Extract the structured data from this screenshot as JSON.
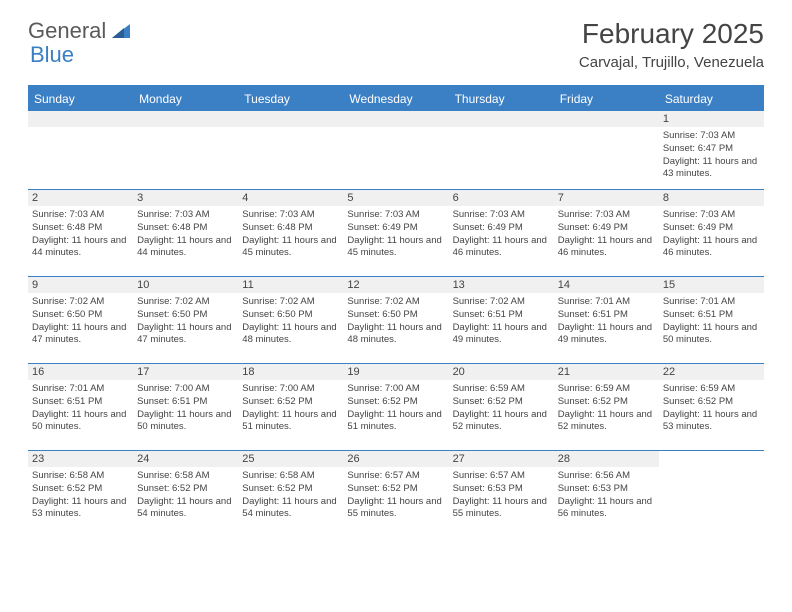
{
  "brand": {
    "part1": "General",
    "part2": "Blue"
  },
  "title": "February 2025",
  "location": "Carvajal, Trujillo, Venezuela",
  "colors": {
    "accent": "#3b7fc4",
    "header_bg": "#3b7fc4",
    "header_text": "#ffffff",
    "daynum_bg": "#f0f0f0",
    "text": "#444444"
  },
  "day_names": [
    "Sunday",
    "Monday",
    "Tuesday",
    "Wednesday",
    "Thursday",
    "Friday",
    "Saturday"
  ],
  "weeks": [
    [
      null,
      null,
      null,
      null,
      null,
      null,
      {
        "n": "1",
        "sr": "7:03 AM",
        "ss": "6:47 PM",
        "dl": "11 hours and 43 minutes."
      }
    ],
    [
      {
        "n": "2",
        "sr": "7:03 AM",
        "ss": "6:48 PM",
        "dl": "11 hours and 44 minutes."
      },
      {
        "n": "3",
        "sr": "7:03 AM",
        "ss": "6:48 PM",
        "dl": "11 hours and 44 minutes."
      },
      {
        "n": "4",
        "sr": "7:03 AM",
        "ss": "6:48 PM",
        "dl": "11 hours and 45 minutes."
      },
      {
        "n": "5",
        "sr": "7:03 AM",
        "ss": "6:49 PM",
        "dl": "11 hours and 45 minutes."
      },
      {
        "n": "6",
        "sr": "7:03 AM",
        "ss": "6:49 PM",
        "dl": "11 hours and 46 minutes."
      },
      {
        "n": "7",
        "sr": "7:03 AM",
        "ss": "6:49 PM",
        "dl": "11 hours and 46 minutes."
      },
      {
        "n": "8",
        "sr": "7:03 AM",
        "ss": "6:49 PM",
        "dl": "11 hours and 46 minutes."
      }
    ],
    [
      {
        "n": "9",
        "sr": "7:02 AM",
        "ss": "6:50 PM",
        "dl": "11 hours and 47 minutes."
      },
      {
        "n": "10",
        "sr": "7:02 AM",
        "ss": "6:50 PM",
        "dl": "11 hours and 47 minutes."
      },
      {
        "n": "11",
        "sr": "7:02 AM",
        "ss": "6:50 PM",
        "dl": "11 hours and 48 minutes."
      },
      {
        "n": "12",
        "sr": "7:02 AM",
        "ss": "6:50 PM",
        "dl": "11 hours and 48 minutes."
      },
      {
        "n": "13",
        "sr": "7:02 AM",
        "ss": "6:51 PM",
        "dl": "11 hours and 49 minutes."
      },
      {
        "n": "14",
        "sr": "7:01 AM",
        "ss": "6:51 PM",
        "dl": "11 hours and 49 minutes."
      },
      {
        "n": "15",
        "sr": "7:01 AM",
        "ss": "6:51 PM",
        "dl": "11 hours and 50 minutes."
      }
    ],
    [
      {
        "n": "16",
        "sr": "7:01 AM",
        "ss": "6:51 PM",
        "dl": "11 hours and 50 minutes."
      },
      {
        "n": "17",
        "sr": "7:00 AM",
        "ss": "6:51 PM",
        "dl": "11 hours and 50 minutes."
      },
      {
        "n": "18",
        "sr": "7:00 AM",
        "ss": "6:52 PM",
        "dl": "11 hours and 51 minutes."
      },
      {
        "n": "19",
        "sr": "7:00 AM",
        "ss": "6:52 PM",
        "dl": "11 hours and 51 minutes."
      },
      {
        "n": "20",
        "sr": "6:59 AM",
        "ss": "6:52 PM",
        "dl": "11 hours and 52 minutes."
      },
      {
        "n": "21",
        "sr": "6:59 AM",
        "ss": "6:52 PM",
        "dl": "11 hours and 52 minutes."
      },
      {
        "n": "22",
        "sr": "6:59 AM",
        "ss": "6:52 PM",
        "dl": "11 hours and 53 minutes."
      }
    ],
    [
      {
        "n": "23",
        "sr": "6:58 AM",
        "ss": "6:52 PM",
        "dl": "11 hours and 53 minutes."
      },
      {
        "n": "24",
        "sr": "6:58 AM",
        "ss": "6:52 PM",
        "dl": "11 hours and 54 minutes."
      },
      {
        "n": "25",
        "sr": "6:58 AM",
        "ss": "6:52 PM",
        "dl": "11 hours and 54 minutes."
      },
      {
        "n": "26",
        "sr": "6:57 AM",
        "ss": "6:52 PM",
        "dl": "11 hours and 55 minutes."
      },
      {
        "n": "27",
        "sr": "6:57 AM",
        "ss": "6:53 PM",
        "dl": "11 hours and 55 minutes."
      },
      {
        "n": "28",
        "sr": "6:56 AM",
        "ss": "6:53 PM",
        "dl": "11 hours and 56 minutes."
      },
      null
    ]
  ],
  "labels": {
    "sunrise": "Sunrise:",
    "sunset": "Sunset:",
    "daylight": "Daylight:"
  }
}
